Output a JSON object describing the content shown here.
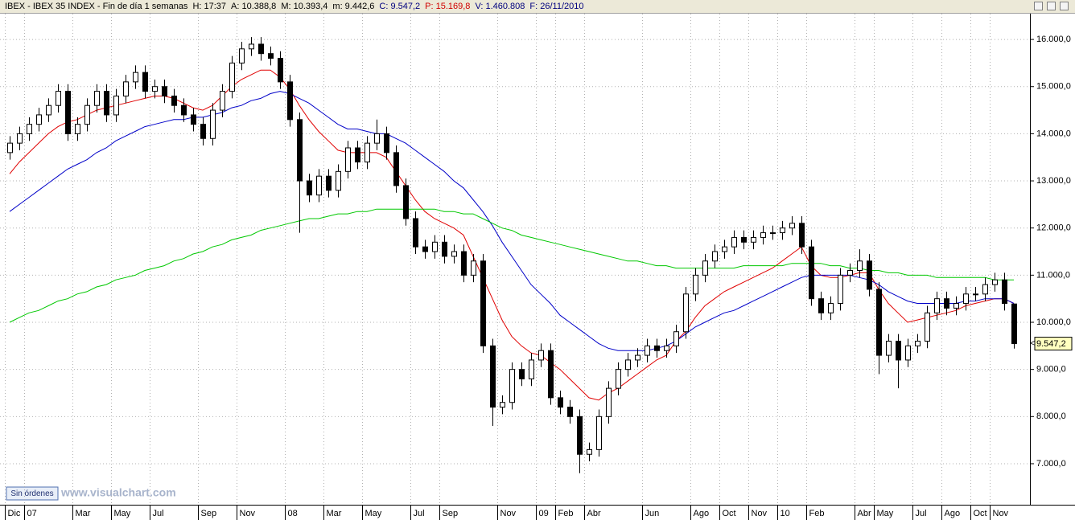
{
  "header": {
    "items": [
      {
        "text": "IBEX - IBEX 35 INDEX - Fin de día 1 semanas",
        "color": "#000000"
      },
      {
        "text": "H: 17:37",
        "color": "#000000"
      },
      {
        "text": "A: 10.388,8",
        "color": "#000000"
      },
      {
        "text": "M: 10.393,4",
        "color": "#000000"
      },
      {
        "text": "m: 9.442,6",
        "color": "#000000"
      },
      {
        "text": "C: 9.547,2",
        "color": "#00007f"
      },
      {
        "text": "P: 15.169,8",
        "color": "#d00000"
      },
      {
        "text": "V: 1.460.808",
        "color": "#00007f"
      },
      {
        "text": "F: 26/11/2010",
        "color": "#00007f"
      }
    ]
  },
  "footer": {
    "button": "Sin órdenes",
    "watermark": "www.visualchart.com"
  },
  "chart_data": {
    "type": "candlestick",
    "grid": true,
    "up_color": "#ffffff",
    "down_color": "#000000",
    "outline_color": "#000000",
    "ylim": [
      6130,
      16530
    ],
    "yticks": [
      {
        "value": 7000,
        "label": "7.000,0"
      },
      {
        "value": 8000,
        "label": "8.000,0"
      },
      {
        "value": 9000,
        "label": "9.000,0"
      },
      {
        "value": 10000,
        "label": "10.000,0"
      },
      {
        "value": 11000,
        "label": "11.000,0"
      },
      {
        "value": 12000,
        "label": "12.000,0"
      },
      {
        "value": 13000,
        "label": "13.000,0"
      },
      {
        "value": 14000,
        "label": "14.000,0"
      },
      {
        "value": 15000,
        "label": "15.000,0"
      },
      {
        "value": 16000,
        "label": "16.000,0"
      }
    ],
    "last_label": {
      "value": 9547.2,
      "label": "9.547,2",
      "color": "#ffffc0"
    },
    "categories": [
      "Dic",
      null,
      "07",
      null,
      null,
      null,
      null,
      "Mar",
      null,
      null,
      null,
      "May",
      null,
      null,
      null,
      "Jul",
      null,
      null,
      null,
      null,
      "Sep",
      null,
      null,
      null,
      "Nov",
      null,
      null,
      null,
      null,
      "08",
      null,
      null,
      null,
      "Mar",
      null,
      null,
      null,
      "May",
      null,
      null,
      null,
      null,
      "Jul",
      null,
      null,
      "Sep",
      null,
      null,
      null,
      null,
      null,
      "Nov",
      null,
      null,
      null,
      "09",
      null,
      "Feb",
      null,
      null,
      "Abr",
      null,
      null,
      null,
      null,
      null,
      "Jun",
      null,
      null,
      null,
      null,
      "Ago",
      null,
      null,
      "Oct",
      null,
      null,
      "Nov",
      null,
      null,
      "10",
      null,
      null,
      "Feb",
      null,
      null,
      null,
      null,
      "Abr",
      null,
      "May",
      null,
      null,
      null,
      "Jul",
      null,
      null,
      "Ago",
      null,
      null,
      "Oct",
      null,
      "Nov",
      null,
      null
    ],
    "open": [
      13600,
      13800,
      14000,
      14200,
      14400,
      14600,
      14900,
      14000,
      14200,
      14600,
      14900,
      14400,
      14800,
      15100,
      15300,
      14900,
      15000,
      14800,
      14600,
      14400,
      14200,
      13900,
      14500,
      14900,
      15500,
      15800,
      15900,
      15700,
      15600,
      15100,
      14300,
      13000,
      12700,
      13100,
      12800,
      13200,
      13700,
      13400,
      13800,
      14000,
      13600,
      12900,
      12200,
      11600,
      11500,
      11700,
      11400,
      11500,
      11000,
      11300,
      9500,
      8200,
      8300,
      9000,
      8800,
      9200,
      9400,
      8400,
      8200,
      8000,
      7200,
      7300,
      8000,
      8600,
      9000,
      9200,
      9300,
      9500,
      9400,
      9500,
      9800,
      10600,
      11000,
      11300,
      11500,
      11600,
      11800,
      11700,
      11800,
      11900,
      11900,
      12000,
      12100,
      11600,
      10500,
      10200,
      10400,
      11000,
      11100,
      11300,
      10700,
      9300,
      9600,
      9200,
      9500,
      9600,
      10200,
      10500,
      10300,
      10400,
      10600,
      10600,
      10800,
      10900,
      10388.8
    ],
    "high": [
      13950,
      14150,
      14350,
      14550,
      14750,
      15050,
      15050,
      14350,
      14750,
      15050,
      15050,
      14950,
      15250,
      15450,
      15450,
      15150,
      15150,
      14950,
      14750,
      14550,
      14350,
      14650,
      15050,
      15650,
      15950,
      16050,
      16050,
      15850,
      15750,
      15250,
      14450,
      13150,
      13250,
      13250,
      13350,
      13850,
      13850,
      13950,
      14300,
      14150,
      13750,
      13050,
      12350,
      11750,
      11850,
      11850,
      11650,
      11650,
      11450,
      11450,
      9650,
      8450,
      9150,
      9150,
      9350,
      9550,
      9550,
      8550,
      8350,
      8150,
      7450,
      8150,
      8750,
      9150,
      9350,
      9450,
      9650,
      9650,
      9650,
      9950,
      10750,
      11150,
      11450,
      11650,
      11750,
      11950,
      11950,
      11950,
      12050,
      12050,
      12150,
      12250,
      12250,
      11750,
      10650,
      10550,
      11150,
      11250,
      11550,
      11450,
      10850,
      9750,
      9750,
      9650,
      9750,
      10350,
      10650,
      10650,
      10550,
      10750,
      10750,
      10950,
      11050,
      11050,
      10393.4
    ],
    "low": [
      13450,
      13650,
      13850,
      14050,
      14250,
      14450,
      13850,
      13850,
      14050,
      14450,
      14250,
      14250,
      14650,
      14950,
      14750,
      14750,
      14650,
      14450,
      14250,
      14050,
      13750,
      13750,
      14350,
      14750,
      15350,
      15650,
      15550,
      15450,
      14950,
      14150,
      11900,
      12550,
      12550,
      12650,
      12650,
      13050,
      13250,
      13250,
      13650,
      13450,
      12750,
      12050,
      11450,
      11350,
      11350,
      11250,
      11250,
      10850,
      10850,
      9350,
      7800,
      8050,
      8150,
      8650,
      8650,
      9050,
      8250,
      8050,
      7850,
      6800,
      7050,
      7150,
      7850,
      8450,
      8850,
      9050,
      9150,
      9250,
      9250,
      9350,
      9650,
      10450,
      10850,
      11150,
      11350,
      11450,
      11550,
      11550,
      11650,
      11750,
      11750,
      11850,
      11450,
      10350,
      10050,
      10050,
      10250,
      10850,
      10950,
      10550,
      8900,
      9150,
      8600,
      9050,
      9350,
      9450,
      10050,
      10150,
      10150,
      10250,
      10450,
      10450,
      10650,
      10250,
      9442.6
    ],
    "close": [
      13800,
      14000,
      14200,
      14400,
      14600,
      14900,
      14000,
      14200,
      14600,
      14900,
      14400,
      14800,
      15100,
      15300,
      14900,
      15000,
      14800,
      14600,
      14400,
      14200,
      13900,
      14500,
      14900,
      15500,
      15800,
      15900,
      15700,
      15600,
      15100,
      14300,
      13000,
      12700,
      13100,
      12800,
      13200,
      13700,
      13400,
      13800,
      14000,
      13600,
      12900,
      12200,
      11600,
      11500,
      11700,
      11400,
      11500,
      11000,
      11300,
      9500,
      8200,
      8300,
      9000,
      8800,
      9200,
      9400,
      8400,
      8200,
      8000,
      7200,
      7300,
      8000,
      8600,
      9000,
      9200,
      9300,
      9500,
      9400,
      9500,
      9800,
      10600,
      11000,
      11300,
      11500,
      11600,
      11800,
      11700,
      11800,
      11900,
      11900,
      12000,
      12100,
      11600,
      10500,
      10200,
      10400,
      11000,
      11100,
      11300,
      10700,
      9300,
      9600,
      9200,
      9500,
      9600,
      10200,
      10500,
      10300,
      10400,
      10600,
      10600,
      10800,
      10900,
      10400,
      9547.2
    ],
    "series": [
      {
        "color": "#e00000",
        "values": [
          13150,
          13400,
          13600,
          13800,
          14000,
          14150,
          14250,
          14300,
          14400,
          14500,
          14550,
          14600,
          14650,
          14700,
          14750,
          14800,
          14800,
          14750,
          14650,
          14550,
          14500,
          14600,
          14800,
          15000,
          15150,
          15250,
          15350,
          15350,
          15200,
          14950,
          14600,
          14300,
          14050,
          13850,
          13650,
          13600,
          13600,
          13600,
          13600,
          13500,
          13200,
          12900,
          12600,
          12350,
          12200,
          12100,
          12000,
          11850,
          11400,
          10950,
          10500,
          10050,
          9700,
          9500,
          9350,
          9300,
          9150,
          9000,
          8800,
          8600,
          8400,
          8350,
          8500,
          8600,
          8750,
          8900,
          9050,
          9200,
          9300,
          9600,
          9800,
          10100,
          10350,
          10500,
          10650,
          10750,
          10850,
          10950,
          11050,
          11150,
          11300,
          11450,
          11600,
          11200,
          11000,
          10950,
          10950,
          11000,
          11050,
          11050,
          10700,
          10400,
          10200,
          10000,
          10050,
          10100,
          10150,
          10200,
          10250,
          10350,
          10400,
          10450,
          10500,
          10500,
          10400
        ]
      },
      {
        "color": "#0000c8",
        "values": [
          12350,
          12500,
          12650,
          12800,
          12950,
          13100,
          13250,
          13350,
          13450,
          13600,
          13700,
          13850,
          13950,
          14050,
          14150,
          14200,
          14250,
          14300,
          14300,
          14350,
          14350,
          14400,
          14450,
          14550,
          14600,
          14700,
          14750,
          14850,
          14900,
          14850,
          14750,
          14650,
          14500,
          14350,
          14200,
          14100,
          14100,
          14050,
          14000,
          14000,
          13900,
          13800,
          13650,
          13500,
          13350,
          13200,
          13000,
          12850,
          12600,
          12350,
          12050,
          11700,
          11400,
          11100,
          10800,
          10600,
          10400,
          10150,
          10000,
          9850,
          9700,
          9550,
          9450,
          9400,
          9400,
          9400,
          9400,
          9450,
          9500,
          9600,
          9750,
          9900,
          10000,
          10100,
          10200,
          10250,
          10350,
          10450,
          10550,
          10650,
          10750,
          10850,
          10950,
          11000,
          11000,
          11000,
          11000,
          11000,
          10950,
          10900,
          10800,
          10650,
          10550,
          10450,
          10400,
          10400,
          10400,
          10400,
          10400,
          10450,
          10450,
          10500,
          10500,
          10500,
          10400
        ]
      },
      {
        "color": "#00c800",
        "values": [
          10000,
          10100,
          10200,
          10250,
          10350,
          10450,
          10500,
          10600,
          10650,
          10750,
          10800,
          10900,
          10950,
          11000,
          11100,
          11150,
          11200,
          11300,
          11350,
          11450,
          11500,
          11600,
          11650,
          11750,
          11800,
          11850,
          11950,
          12000,
          12050,
          12100,
          12150,
          12200,
          12200,
          12250,
          12300,
          12300,
          12350,
          12350,
          12400,
          12400,
          12400,
          12400,
          12400,
          12400,
          12400,
          12350,
          12350,
          12300,
          12300,
          12200,
          12100,
          12000,
          11950,
          11850,
          11800,
          11750,
          11700,
          11650,
          11600,
          11550,
          11500,
          11450,
          11400,
          11350,
          11300,
          11300,
          11250,
          11200,
          11200,
          11150,
          11150,
          11150,
          11150,
          11150,
          11150,
          11150,
          11200,
          11200,
          11200,
          11200,
          11200,
          11250,
          11250,
          11250,
          11250,
          11200,
          11200,
          11150,
          11150,
          11100,
          11100,
          11050,
          11050,
          11000,
          11000,
          11000,
          10950,
          10950,
          10950,
          10950,
          10950,
          10950,
          10900,
          10900,
          10900
        ]
      }
    ]
  }
}
